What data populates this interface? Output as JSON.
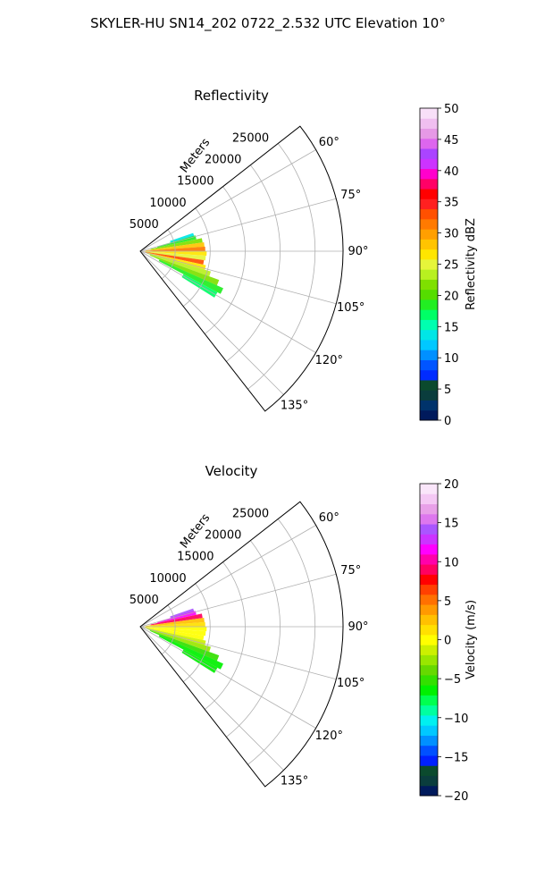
{
  "figure": {
    "title": "SKYLER-HU  SN14_202  0722_2.532 UTC Elevation 10°"
  },
  "chart_data": [
    {
      "type": "heatmap",
      "projection": "polar-sector",
      "title": "Reflectivity",
      "range_label": "Meters",
      "range_ticks": [
        5000,
        10000,
        15000,
        20000,
        25000
      ],
      "range_tick_labels": [
        "5000",
        "10000",
        "15000",
        "20000",
        "25000"
      ],
      "rmax": 29000,
      "azimuth_range_deg": [
        52,
        142
      ],
      "azimuth_ticks_deg": [
        60,
        75,
        90,
        105,
        120,
        135
      ],
      "azimuth_tick_labels": [
        "60°",
        "75°",
        "90°",
        "105°",
        "120°",
        "135°"
      ],
      "grid": true,
      "colorbar": {
        "label": "Reflectivity dBZ",
        "min": 0,
        "max": 50,
        "ticks": [
          0,
          5,
          10,
          15,
          20,
          25,
          30,
          35,
          40,
          45,
          50
        ],
        "tick_labels": [
          "0",
          "5",
          "10",
          "15",
          "20",
          "25",
          "30",
          "35",
          "40",
          "45",
          "50"
        ],
        "colors": [
          "#001a5c",
          "#00336b",
          "#0a3d3d",
          "#0b4a2e",
          "#002bff",
          "#0055ff",
          "#0090ff",
          "#00c8ff",
          "#00e6e6",
          "#00ffb0",
          "#00ff66",
          "#22ee22",
          "#55dd00",
          "#7fe000",
          "#b8f020",
          "#e6f53a",
          "#ffe600",
          "#ffc400",
          "#ff9f00",
          "#ff7a00",
          "#ff5000",
          "#ff2020",
          "#ff0000",
          "#ff0066",
          "#ff00cc",
          "#cc33ff",
          "#aa44ff",
          "#dd66ee",
          "#e699e6",
          "#f0bff0",
          "#f8e0f8"
        ]
      },
      "echo_cells": [
        {
          "az": 73,
          "r": [
            4500,
            8000
          ],
          "value": 13
        },
        {
          "az": 76,
          "r": [
            2500,
            8200
          ],
          "value": 18
        },
        {
          "az": 80,
          "r": [
            1500,
            9000
          ],
          "value": 22
        },
        {
          "az": 84,
          "r": [
            800,
            9200
          ],
          "value": 28
        },
        {
          "az": 88,
          "r": [
            500,
            9300
          ],
          "value": 31
        },
        {
          "az": 92,
          "r": [
            500,
            9500
          ],
          "value": 27
        },
        {
          "az": 96,
          "r": [
            600,
            9400
          ],
          "value": 25
        },
        {
          "az": 100,
          "r": [
            700,
            9200
          ],
          "value": 33
        },
        {
          "az": 104,
          "r": [
            800,
            9600
          ],
          "value": 26
        },
        {
          "az": 108,
          "r": [
            1000,
            10500
          ],
          "value": 24
        },
        {
          "az": 112,
          "r": [
            1500,
            12000
          ],
          "value": 21
        },
        {
          "az": 116,
          "r": [
            3000,
            13000
          ],
          "value": 19
        },
        {
          "az": 120,
          "r": [
            7000,
            12500
          ],
          "value": 17
        }
      ]
    },
    {
      "type": "heatmap",
      "projection": "polar-sector",
      "title": "Velocity",
      "range_label": "Meters",
      "range_ticks": [
        5000,
        10000,
        15000,
        20000,
        25000
      ],
      "range_tick_labels": [
        "5000",
        "10000",
        "15000",
        "20000",
        "25000"
      ],
      "rmax": 29000,
      "azimuth_range_deg": [
        52,
        142
      ],
      "azimuth_ticks_deg": [
        60,
        75,
        90,
        105,
        120,
        135
      ],
      "azimuth_tick_labels": [
        "60°",
        "75°",
        "90°",
        "105°",
        "120°",
        "135°"
      ],
      "grid": true,
      "colorbar": {
        "label": "Velocity (m/s)",
        "min": -20,
        "max": 20,
        "ticks": [
          -20,
          -15,
          -10,
          -5,
          0,
          5,
          10,
          15,
          20
        ],
        "tick_labels": [
          "−20",
          "−15",
          "−10",
          "−5",
          "0",
          "5",
          "10",
          "15",
          "20"
        ],
        "colors": [
          "#001a5c",
          "#0a3d3d",
          "#0b4a2e",
          "#0020ff",
          "#0050ff",
          "#0090ff",
          "#00c8ff",
          "#00f0f0",
          "#00ffa0",
          "#00ff50",
          "#00f000",
          "#33e000",
          "#66d900",
          "#99e600",
          "#ccf000",
          "#ffff00",
          "#ffe000",
          "#ffc000",
          "#ff9900",
          "#ff7000",
          "#ff4000",
          "#ff0000",
          "#ff0060",
          "#ff00aa",
          "#ff00ff",
          "#cc33ff",
          "#aa55ff",
          "#dd77ee",
          "#e8a0e8",
          "#f4c8f4",
          "#fae6fa"
        ]
      },
      "echo_cells": [
        {
          "az": 73,
          "r": [
            4500,
            8000
          ],
          "value": 14
        },
        {
          "az": 76,
          "r": [
            2500,
            8200
          ],
          "value": 12
        },
        {
          "az": 80,
          "r": [
            1500,
            9000
          ],
          "value": 9
        },
        {
          "az": 84,
          "r": [
            800,
            9200
          ],
          "value": 3
        },
        {
          "az": 88,
          "r": [
            500,
            9300
          ],
          "value": 1
        },
        {
          "az": 92,
          "r": [
            500,
            9500
          ],
          "value": 0
        },
        {
          "az": 96,
          "r": [
            600,
            9400
          ],
          "value": 0
        },
        {
          "az": 100,
          "r": [
            700,
            9200
          ],
          "value": 0
        },
        {
          "az": 104,
          "r": [
            800,
            9600
          ],
          "value": -1
        },
        {
          "az": 108,
          "r": [
            1000,
            10500
          ],
          "value": -3
        },
        {
          "az": 112,
          "r": [
            1500,
            12000
          ],
          "value": -5
        },
        {
          "az": 116,
          "r": [
            3000,
            13000
          ],
          "value": -6
        },
        {
          "az": 120,
          "r": [
            7000,
            12500
          ],
          "value": -7
        }
      ]
    }
  ]
}
